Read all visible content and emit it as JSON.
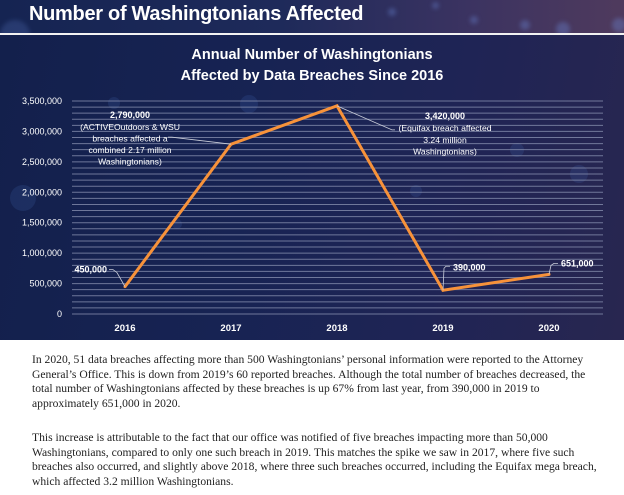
{
  "header": {
    "title": "Number of Washingtonians Affected"
  },
  "chart_data": {
    "type": "line",
    "title": "Annual Number of Washingtonians Affected by Data Breaches Since 2016",
    "title_lines": [
      "Annual Number of Washingtonians",
      "Affected by Data Breaches Since 2016"
    ],
    "xlabel": "",
    "ylabel": "",
    "categories": [
      "2016",
      "2017",
      "2018",
      "2019",
      "2020"
    ],
    "series": [
      {
        "name": "Washingtonians affected",
        "values": [
          450000,
          2790000,
          3420000,
          390000,
          651000
        ],
        "color": "#f7923a"
      }
    ],
    "ylim": [
      0,
      3500000
    ],
    "y_ticks": [
      0,
      500000,
      1000000,
      1500000,
      2000000,
      2500000,
      3000000,
      3500000
    ],
    "y_tick_labels": [
      "0",
      "500,000",
      "1,000,000",
      "1,500,000",
      "2,000,000",
      "2,500,000",
      "3,000,000",
      "3,500,000"
    ],
    "minor_grid_step": 100000,
    "grid": true,
    "annotations": [
      {
        "index": 0,
        "label": "450,000",
        "note": []
      },
      {
        "index": 1,
        "label": "2,790,000",
        "note": [
          "(ACTIVEOutdoors & WSU",
          "breaches affected a",
          "combined 2.17 million",
          "Washingtonians)"
        ]
      },
      {
        "index": 2,
        "label": "3,420,000",
        "note": [
          "(Equifax breach affected",
          "3.24 million",
          "Washingtonians)"
        ]
      },
      {
        "index": 3,
        "label": "390,000",
        "note": []
      },
      {
        "index": 4,
        "label": "651,000",
        "note": []
      }
    ]
  },
  "body": {
    "paragraphs": [
      "In 2020, 51 data breaches affecting more than 500 Washingtonians’ personal information were reported to the Attorney General’s Office. This is down from 2019’s 60 reported breaches. Although the total number of breaches decreased, the total number of Washingtonians affected by these breaches is up 67% from last year, from 390,000 in 2019 to approximately 651,000 in 2020.",
      "This increase is attributable to the fact that our office was notified of five breaches impacting more than 50,000 Washingtonians, compared to only one such breach in 2019. This matches the spike we saw in 2017, where five such breaches also occurred, and slightly above 2018, where three such breaches occurred, including the Equifax mega breach, which affected 3.2 million Washingtonians."
    ]
  }
}
